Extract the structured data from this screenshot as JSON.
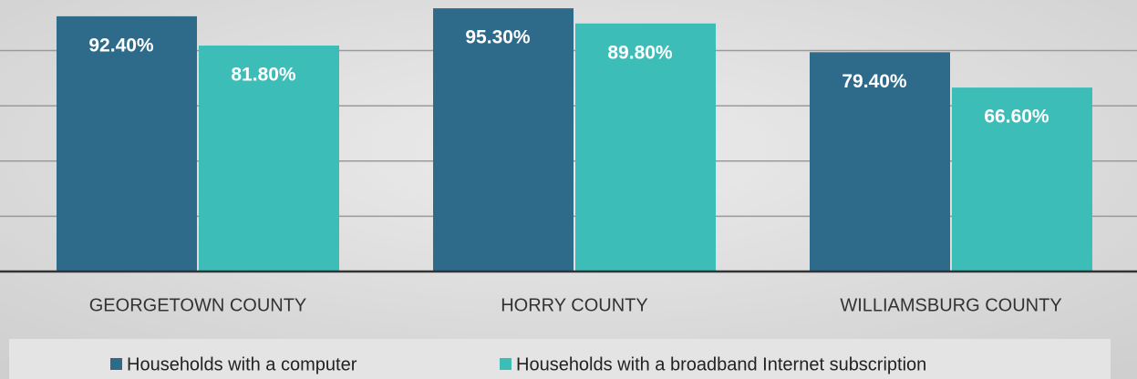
{
  "chart_data": {
    "type": "bar",
    "categories": [
      "GEORGETOWN COUNTY",
      "HORRY COUNTY",
      "WILLIAMSBURG COUNTY"
    ],
    "series": [
      {
        "name": "Households with a computer",
        "color": "#2e6b8a",
        "values": [
          92.4,
          95.3,
          79.4
        ],
        "value_labels": [
          "92.40%",
          "95.30%",
          "79.40%"
        ]
      },
      {
        "name": "Households with a broadband Internet subscription",
        "color": "#3dbdb8",
        "values": [
          81.8,
          89.8,
          66.6
        ],
        "value_labels": [
          "81.80%",
          "89.80%",
          "66.60%"
        ]
      }
    ],
    "ylim": [
      0,
      98.3
    ],
    "yticks": [
      20,
      40,
      60,
      80
    ],
    "grid": true,
    "legend": "bottom"
  }
}
